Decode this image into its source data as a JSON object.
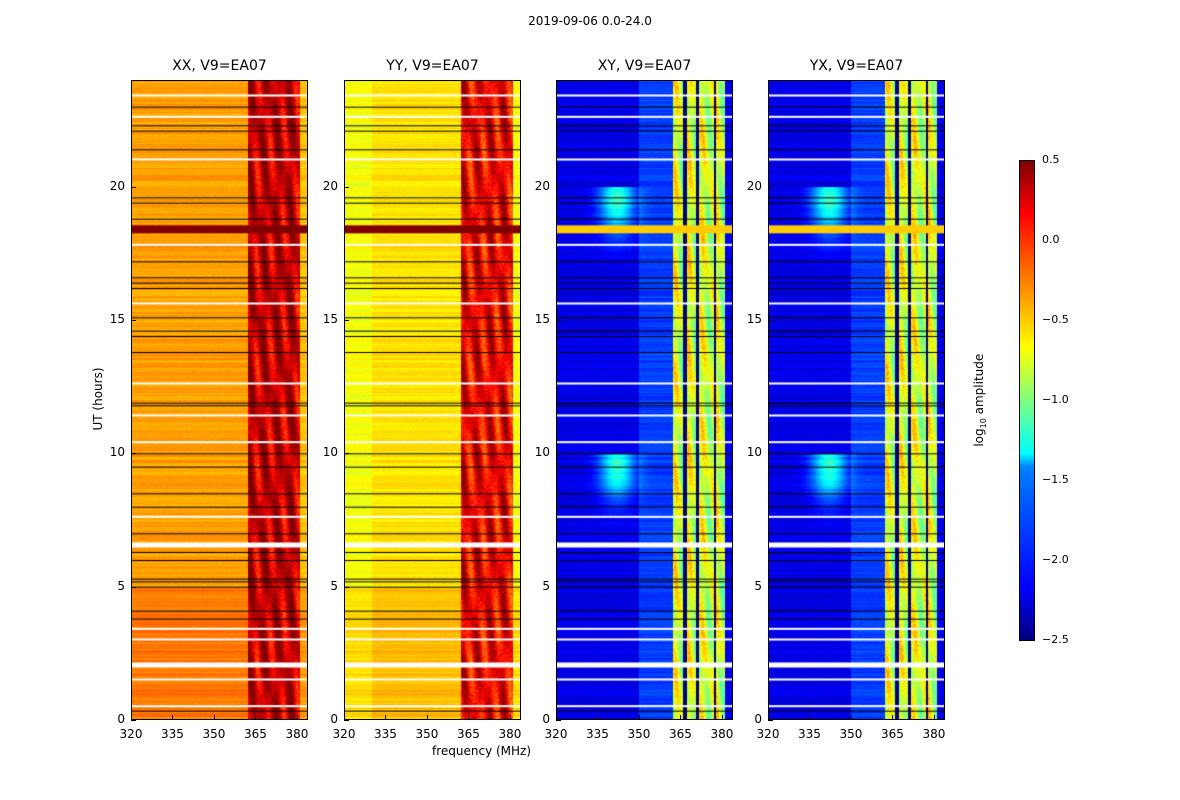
{
  "suptitle": "2019-09-06 0.0-24.0",
  "chart_data": {
    "type": "heatmap",
    "xlabel": "frequency (MHz)",
    "ylabel": "UT (hours)",
    "xlim": [
      320,
      384
    ],
    "ylim": [
      0,
      24
    ],
    "xticks": [
      "320",
      "335",
      "350",
      "365",
      "380"
    ],
    "xtick_values": [
      320,
      335,
      350,
      365,
      380
    ],
    "yticks": [
      "0",
      "5",
      "10",
      "15",
      "20"
    ],
    "ytick_values": [
      0,
      5,
      10,
      15,
      20
    ],
    "colorbar": {
      "label": "log10 amplitude",
      "label_main": "log",
      "label_sub": "10",
      "label_rest": " amplitude",
      "vmin": -2.5,
      "vmax": 0.5,
      "colormap": "jet",
      "ticks": [
        "0.5",
        "0.0",
        "−0.5",
        "−1.0",
        "−1.5",
        "−2.0",
        "−2.5"
      ],
      "tick_values": [
        0.5,
        0,
        -0.5,
        -1,
        -1.5,
        -2,
        -2.5
      ]
    },
    "panels": [
      {
        "title": "XX, V9=EA07",
        "base": -0.35,
        "rfi": 0.15,
        "kind": "parallel"
      },
      {
        "title": "YY, V9=EA07",
        "base": -0.55,
        "rfi": 0.0,
        "kind": "parallel"
      },
      {
        "title": "XY, V9=EA07",
        "base": -2.2,
        "rfi": -0.9,
        "kind": "cross"
      },
      {
        "title": "YX, V9=EA07",
        "base": -2.2,
        "rfi": -0.9,
        "kind": "cross"
      }
    ],
    "rfi_band_mhz": [
      362,
      381
    ],
    "flagged_hours_white": [
      0.5,
      1.5,
      2.1,
      3.0,
      3.4,
      6.6,
      7.6,
      10.4,
      11.4,
      12.6,
      15.6,
      17.8,
      21.0,
      22.6,
      23.4
    ],
    "flagged_hours_black": [
      0.35,
      3.8,
      4.1,
      5.0,
      5.2,
      5.3,
      6.0,
      6.3,
      7.0,
      8.0,
      8.5,
      9.5,
      10.0,
      11.8,
      11.9,
      13.8,
      14.4,
      14.6,
      15.1,
      16.2,
      16.4,
      16.6,
      17.2,
      18.8,
      19.4,
      19.6,
      21.4,
      22.1,
      22.3,
      23.0
    ],
    "saturated_hours": [
      18.4
    ]
  }
}
